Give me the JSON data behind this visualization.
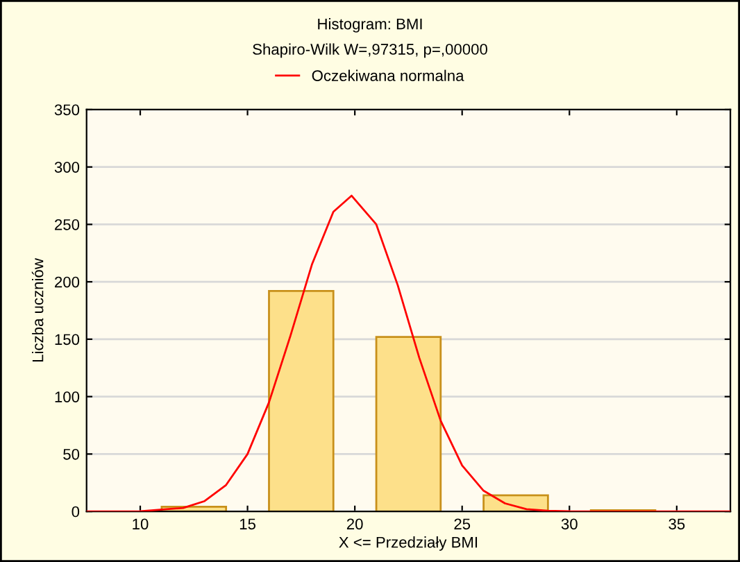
{
  "chart_data": {
    "type": "histogram",
    "title": "Histogram: BMI",
    "subtitle": "Shapiro-Wilk W=,97315, p=,00000",
    "xlabel": "X <= Przedziały BMI",
    "ylabel": "Liczba uczniów",
    "bins": [
      10,
      15,
      20,
      25,
      30,
      35
    ],
    "values": [
      4,
      192,
      152,
      14,
      1
    ],
    "color": "#fde08a",
    "series": [
      {
        "type": "line",
        "name": "Oczekiwana normalna",
        "color": "#ff0000",
        "x": [
          7.5,
          10,
          12,
          13,
          14,
          15,
          16,
          17,
          18,
          19,
          19.85,
          21,
          22,
          23,
          24,
          25,
          26,
          27,
          28,
          29,
          30,
          32,
          37.5
        ],
        "values": [
          0,
          0.2,
          3,
          9,
          23,
          50,
          95,
          153,
          215,
          261,
          275,
          250,
          197,
          134,
          79,
          40,
          18,
          7,
          2,
          0.6,
          0.1,
          0,
          0
        ]
      }
    ],
    "xlim": [
      7.5,
      37.5
    ],
    "xticks": [
      10,
      15,
      20,
      25,
      30,
      35
    ],
    "ylim": [
      0,
      350
    ],
    "yticks": [
      0,
      50,
      100,
      150,
      200,
      250,
      300,
      350
    ],
    "grid": "y",
    "legend": "top",
    "marker": "none",
    "line_style": "solid"
  }
}
